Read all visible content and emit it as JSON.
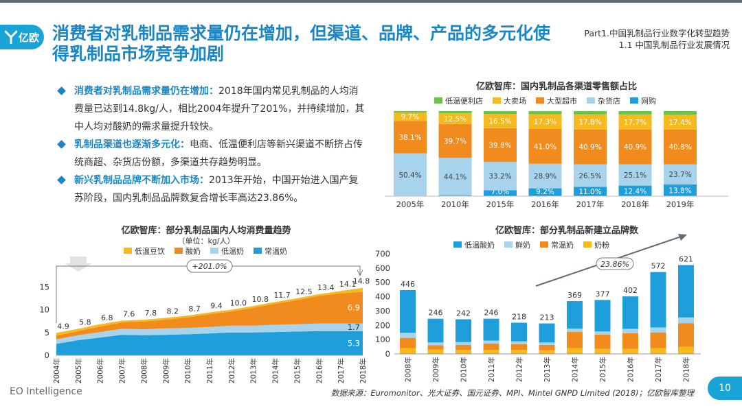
{
  "brand": {
    "logo_text": "亿欧"
  },
  "title": "消费者对乳制品需求量仍在增加，但渠道、品牌、产品的多元化使得乳制品市场竞争加剧",
  "part": {
    "line1": "Part1.中国乳制品行业数字化转型趋势",
    "line2": "1.1 中国乳制品行业发展情况"
  },
  "bullets": [
    {
      "heading": "消费者对乳制品需求量仍在增加：",
      "text": "2018年国内常见乳制品的人均消费量已达到14.8kg/人，相比2004年提升了201%，并持续增加，其中人均对酸奶的需求量提升较快。"
    },
    {
      "heading": "乳制品渠道也逐渐多元化：",
      "text": "电商、低温便利店等新兴渠道不断挤占传统商超、杂货店份额，多渠道共存趋势明显。"
    },
    {
      "heading": "新兴乳制品品牌不断加入市场：",
      "text": "2013年开始，中国开始进入国产复苏阶段，国内乳制品品牌数复合增长率高达23.86%。"
    }
  ],
  "colors": {
    "accent": "#1a86c5",
    "green": "#6cc24a",
    "yellow": "#f6b91e",
    "orange": "#f28b1e",
    "lightblue": "#a7d4ec",
    "blue": "#1e9fdc"
  },
  "chart_data": [
    {
      "type": "bar",
      "title": "亿欧智库：国内乳制品各渠道零售额占比",
      "stacked": true,
      "percent": true,
      "categories": [
        "2005年",
        "2010年",
        "2015年",
        "2016年",
        "2017年",
        "2018年",
        "2019年"
      ],
      "series": [
        {
          "name": "网购",
          "color": "#1e9fdc",
          "values": [
            0.0,
            1.0,
            7.0,
            9.2,
            11.0,
            12.4,
            13.8
          ]
        },
        {
          "name": "杂货店",
          "color": "#a7d4ec",
          "values": [
            50.4,
            44.1,
            33.2,
            28.9,
            26.5,
            25.1,
            23.7
          ]
        },
        {
          "name": "大型超市",
          "color": "#f28b1e",
          "values": [
            38.1,
            39.7,
            39.8,
            41.0,
            40.9,
            40.9,
            40.8
          ]
        },
        {
          "name": "大卖场",
          "color": "#f6b91e",
          "values": [
            9.7,
            12.5,
            16.5,
            17.3,
            17.8,
            17.7,
            17.4
          ]
        },
        {
          "name": "低温便利店",
          "color": "#6cc24a",
          "values": [
            1.8,
            2.7,
            3.5,
            3.6,
            3.8,
            3.9,
            4.3
          ]
        }
      ],
      "legend_order": [
        "低温便利店",
        "大卖场",
        "大型超市",
        "杂货店",
        "网购"
      ],
      "labeled_series": [
        "网购",
        "杂货店",
        "大型超市",
        "大卖场"
      ],
      "ylim": [
        0,
        100
      ]
    },
    {
      "type": "area",
      "title": "亿欧智库：部分乳制品国内人均消费量趋势",
      "subtitle": "（单位：kg/人）",
      "x": [
        "2004年",
        "2005年",
        "2006年",
        "2007年",
        "2008年",
        "2009年",
        "2010年",
        "2011年",
        "2012年",
        "2013年",
        "2014年",
        "2015年",
        "2016年",
        "2017年",
        "2018年"
      ],
      "series": [
        {
          "name": "常温奶",
          "color": "#1e9fdc",
          "values": [
            2.5,
            3.3,
            3.9,
            4.5,
            4.4,
            4.5,
            4.6,
            4.8,
            5.0,
            5.0,
            5.1,
            5.2,
            5.3,
            5.3,
            5.3
          ]
        },
        {
          "name": "低温奶",
          "color": "#a7d4ec",
          "values": [
            1.0,
            1.1,
            1.2,
            1.3,
            1.3,
            1.4,
            1.4,
            1.4,
            1.5,
            1.5,
            1.6,
            1.6,
            1.7,
            1.7,
            1.7
          ]
        },
        {
          "name": "酸奶",
          "color": "#f28b1e",
          "values": [
            0.8,
            0.9,
            1.2,
            1.4,
            1.7,
            1.9,
            2.3,
            2.8,
            3.1,
            3.9,
            4.6,
            5.3,
            6.0,
            6.6,
            6.9
          ]
        },
        {
          "name": "低温豆饮",
          "color": "#f6b91e",
          "values": [
            0.6,
            0.5,
            0.5,
            0.4,
            0.4,
            0.4,
            0.4,
            0.4,
            0.4,
            0.4,
            0.4,
            0.4,
            0.4,
            0.5,
            0.9
          ]
        }
      ],
      "totals": [
        4.9,
        5.8,
        6.8,
        7.6,
        7.8,
        8.2,
        8.7,
        9.4,
        10.0,
        10.8,
        11.7,
        12.5,
        13.4,
        14.1,
        14.8
      ],
      "end_labels": {
        "常温奶": "5.3",
        "低温奶": "1.7",
        "酸奶": "6.9"
      },
      "legend_order": [
        "低温豆饮",
        "酸奶",
        "低温奶",
        "常温奶"
      ],
      "annotation": "+201.0%",
      "yticks": [
        0,
        5,
        10,
        15
      ],
      "ylim": [
        0,
        17
      ]
    },
    {
      "type": "bar",
      "title": "亿欧智库：部分乳制品新建立品牌数",
      "stacked": true,
      "categories": [
        "2008年",
        "2009年",
        "2010年",
        "2011年",
        "2012年",
        "2013年",
        "2014年",
        "2015年",
        "2016年",
        "2017年",
        "2018年"
      ],
      "series": [
        {
          "name": "奶粉",
          "color": "#f6b91e",
          "values": [
            40,
            30,
            28,
            28,
            28,
            25,
            40,
            35,
            35,
            40,
            50
          ]
        },
        {
          "name": "常温奶",
          "color": "#f28b1e",
          "values": [
            72,
            30,
            35,
            45,
            40,
            38,
            115,
            100,
            110,
            110,
            165
          ]
        },
        {
          "name": "鲜奶",
          "color": "#a7d4ec",
          "values": [
            35,
            20,
            20,
            20,
            20,
            17,
            22,
            22,
            30,
            35,
            40
          ]
        },
        {
          "name": "低温酸奶",
          "color": "#1e9fdc",
          "values": [
            299,
            166,
            159,
            153,
            130,
            133,
            192,
            220,
            227,
            387,
            366
          ]
        }
      ],
      "totals": [
        446,
        246,
        242,
        246,
        218,
        213,
        369,
        377,
        402,
        572,
        621
      ],
      "legend_order": [
        "低温酸奶",
        "鲜奶",
        "常温奶",
        "奶粉"
      ],
      "annotation": "23.86%",
      "yticks": [
        0,
        100,
        200,
        300,
        400,
        500,
        600,
        700
      ],
      "ylim": [
        0,
        700
      ]
    }
  ],
  "footer": {
    "left": "EO Intelligence",
    "source": "数据来源：Euromonitor、光大证券、国元证券、MPI、Mintel GNPD Limited (2018)；亿欧智库整理",
    "page": "10"
  }
}
